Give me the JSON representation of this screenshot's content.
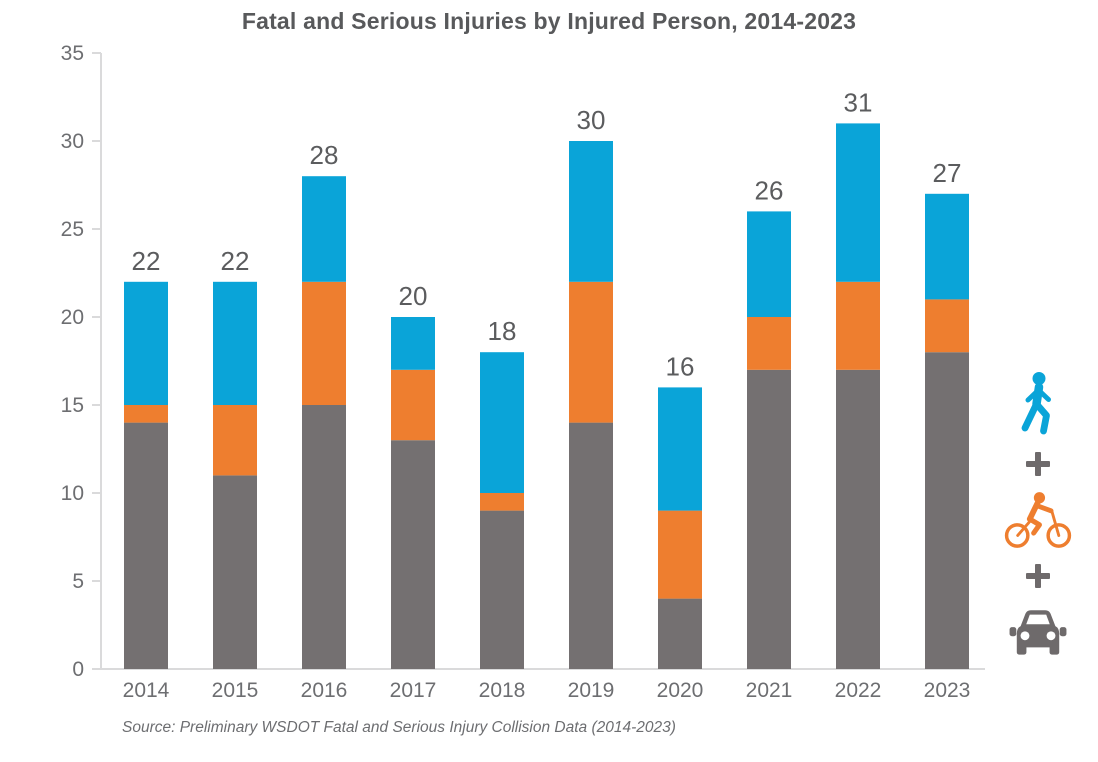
{
  "title": "Fatal and Serious Injuries by Injured Person, 2014-2023",
  "source_note": "Source: Preliminary WSDOT Fatal and Serious Injury Collision Data (2014-2023)",
  "colors": {
    "pedestrian": "#0AA4D8",
    "bicyclist": "#EE7E2F",
    "motor_vehicle": "#747071",
    "icon_gray": "#6E6A6B",
    "axis_line": "#DADADB",
    "axis_label": "#6D6E71",
    "title": "#58595B",
    "value_label": "#5B5C5E",
    "source": "#6D6E71"
  },
  "legend": {
    "items": [
      {
        "icon": "pedestrian-icon",
        "series": "Pedestrian"
      },
      {
        "icon": "plus-icon",
        "series": ""
      },
      {
        "icon": "bicyclist-icon",
        "series": "Bicyclist"
      },
      {
        "icon": "plus-icon",
        "series": ""
      },
      {
        "icon": "car-icon",
        "series": "Motor Vehicle"
      }
    ],
    "position": "right"
  },
  "chart_data": {
    "type": "bar",
    "stacked": true,
    "title": "Fatal and Serious Injuries by Injured Person, 2014-2023",
    "xlabel": "",
    "ylabel": "",
    "categories": [
      "2014",
      "2015",
      "2016",
      "2017",
      "2018",
      "2019",
      "2020",
      "2021",
      "2022",
      "2023"
    ],
    "series": [
      {
        "key": "motor_vehicle",
        "name": "Motor Vehicle",
        "color": "#747071",
        "values": [
          14,
          11,
          15,
          13,
          9,
          14,
          4,
          17,
          17,
          18
        ]
      },
      {
        "key": "bicyclist",
        "name": "Bicyclist",
        "color": "#EE7E2F",
        "values": [
          1,
          4,
          7,
          4,
          1,
          8,
          5,
          3,
          5,
          3
        ]
      },
      {
        "key": "pedestrian",
        "name": "Pedestrian",
        "color": "#0AA4D8",
        "values": [
          7,
          7,
          6,
          3,
          8,
          8,
          7,
          6,
          9,
          6
        ]
      }
    ],
    "totals": [
      22,
      22,
      28,
      20,
      18,
      30,
      16,
      26,
      31,
      27
    ],
    "ylim": [
      0,
      35
    ],
    "yticks": [
      0,
      5,
      10,
      15,
      20,
      25,
      30,
      35
    ],
    "grid": false,
    "legend_position": "right"
  }
}
